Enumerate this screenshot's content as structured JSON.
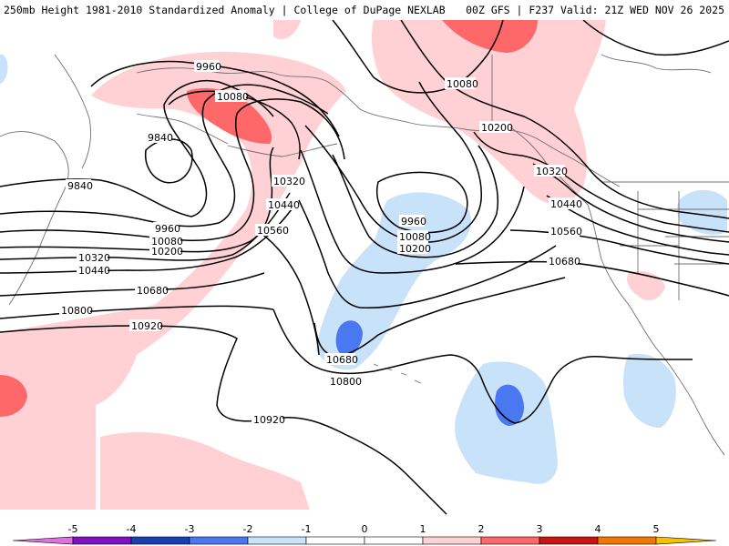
{
  "header": {
    "left_title": "250mb Height 1981-2010 Standardized Anomaly | College of DuPage NEXLAB",
    "right_title": "00Z GFS | F237 Valid: 21Z WED NOV 26 2025"
  },
  "colors": {
    "neg5": "#e070e0",
    "neg4": "#8010c0",
    "neg3": "#1840b0",
    "neg2": "#4a78f0",
    "neg1": "#c8e2fa",
    "pos1": "#ffd0d4",
    "pos2": "#ff6868",
    "pos3": "#c81414",
    "pos4": "#f07800",
    "pos5": "#f8c000"
  },
  "contour_labels": [
    {
      "id": "9960-alaska",
      "text": "9960"
    },
    {
      "id": "10080-alaska",
      "text": "10080"
    },
    {
      "id": "9840-west-inner",
      "text": "9840"
    },
    {
      "id": "9840-west-outer",
      "text": "9840"
    },
    {
      "id": "9960-west",
      "text": "9960"
    },
    {
      "id": "10080-west",
      "text": "10080"
    },
    {
      "id": "10200-west",
      "text": "10200"
    },
    {
      "id": "10320-west",
      "text": "10320"
    },
    {
      "id": "10440-west",
      "text": "10440"
    },
    {
      "id": "10680-west",
      "text": "10680"
    },
    {
      "id": "10800-west",
      "text": "10800"
    },
    {
      "id": "10920-west",
      "text": "10920"
    },
    {
      "id": "10320-center",
      "text": "10320"
    },
    {
      "id": "10440-center",
      "text": "10440"
    },
    {
      "id": "10560-center",
      "text": "10560"
    },
    {
      "id": "9960-low",
      "text": "9960"
    },
    {
      "id": "10080-low",
      "text": "10080"
    },
    {
      "id": "10200-low",
      "text": "10200"
    },
    {
      "id": "10680-south",
      "text": "10680"
    },
    {
      "id": "10800-south",
      "text": "10800"
    },
    {
      "id": "10920-south",
      "text": "10920"
    },
    {
      "id": "10080-east",
      "text": "10080"
    },
    {
      "id": "10200-east",
      "text": "10200"
    },
    {
      "id": "10320-east",
      "text": "10320"
    },
    {
      "id": "10440-east",
      "text": "10440"
    },
    {
      "id": "10560-east",
      "text": "10560"
    },
    {
      "id": "10680-east",
      "text": "10680"
    }
  ],
  "colorbar": {
    "ticks": [
      "-5",
      "-4",
      "-3",
      "-2",
      "-1",
      "0",
      "1",
      "2",
      "3",
      "4",
      "5"
    ]
  }
}
